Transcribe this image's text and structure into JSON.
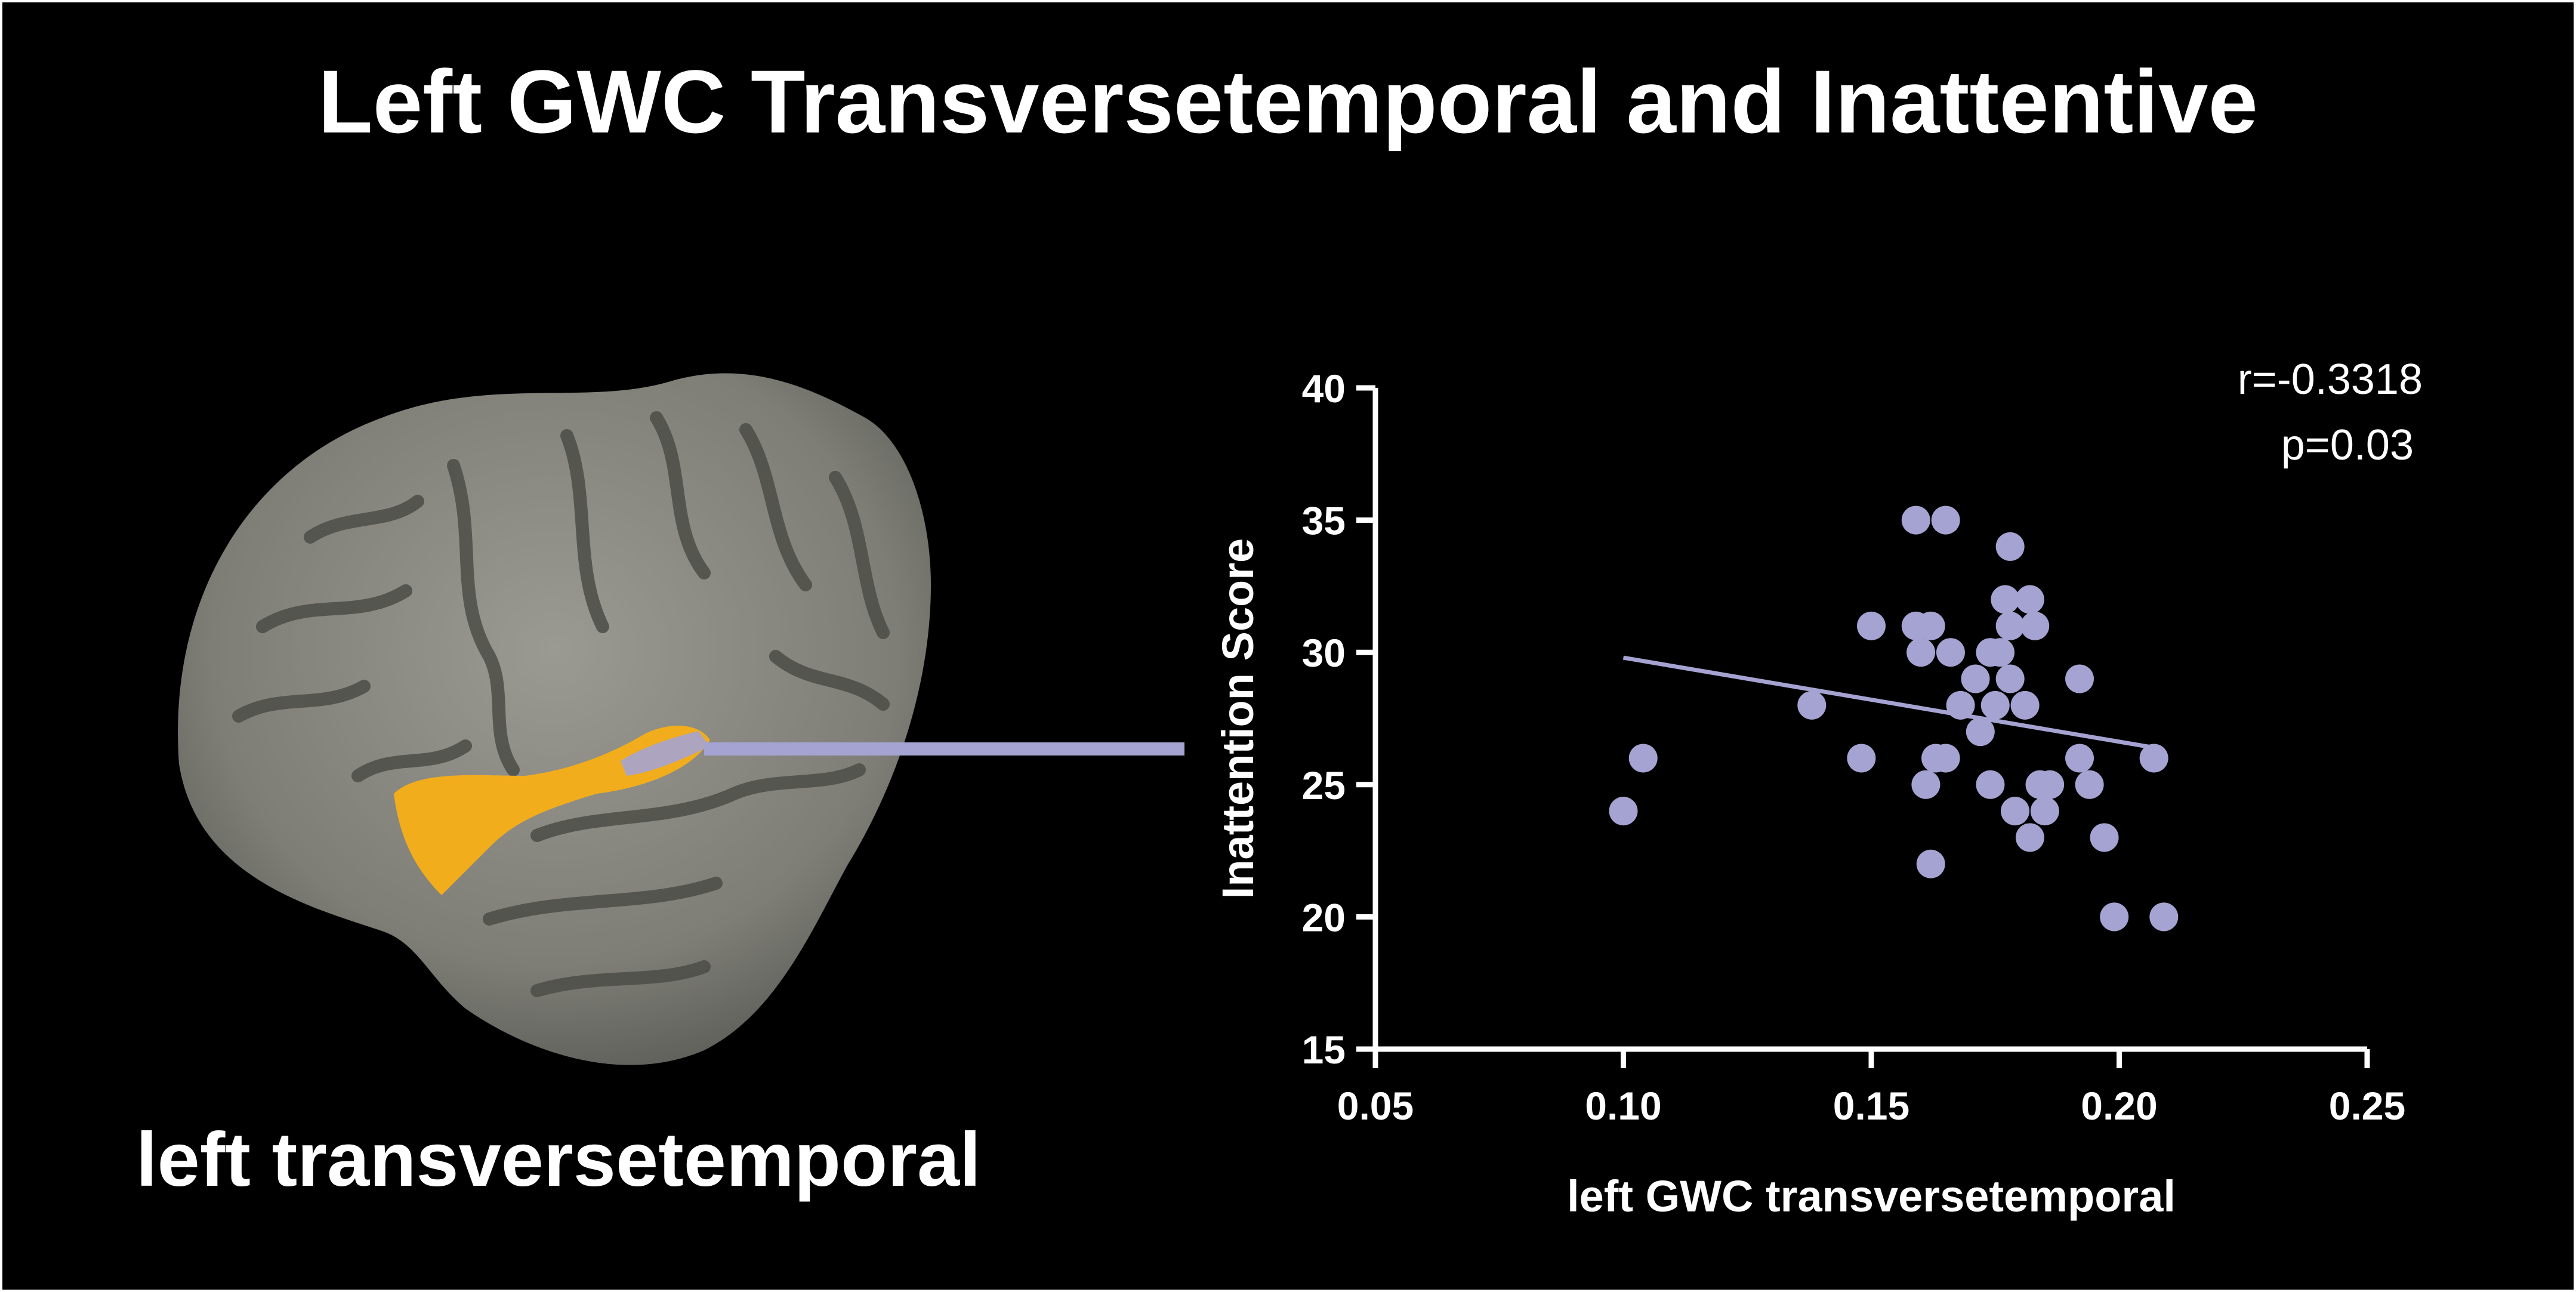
{
  "title": "Left GWC Transversetemporal and Inattentive",
  "region_label": "left transversetemporal",
  "colors": {
    "background": "#000000",
    "text": "#ffffff",
    "point": "#a5a3d2",
    "fit_line": "#a5a3d2",
    "brain_region": "#f2ad1c",
    "brain_cortex": "#8a8a82"
  },
  "chart_data": {
    "type": "scatter",
    "title": "",
    "xlabel": "left GWC transversetemporal",
    "ylabel": "Inattention Score",
    "xlim": [
      0.05,
      0.25
    ],
    "ylim": [
      15,
      40
    ],
    "xticks": [
      "0.05",
      "0.10",
      "0.15",
      "0.20",
      "0.25"
    ],
    "yticks": [
      "15",
      "20",
      "25",
      "30",
      "35",
      "40"
    ],
    "grid": false,
    "annotation": [
      "r=-0.3318",
      "p=0.03"
    ],
    "fit_line": {
      "x": [
        0.1,
        0.207
      ],
      "y": [
        29.8,
        26.4
      ]
    },
    "points": [
      {
        "x": 0.1,
        "y": 24
      },
      {
        "x": 0.104,
        "y": 26
      },
      {
        "x": 0.138,
        "y": 28
      },
      {
        "x": 0.148,
        "y": 26
      },
      {
        "x": 0.15,
        "y": 31
      },
      {
        "x": 0.159,
        "y": 35
      },
      {
        "x": 0.165,
        "y": 35
      },
      {
        "x": 0.159,
        "y": 31
      },
      {
        "x": 0.162,
        "y": 31
      },
      {
        "x": 0.16,
        "y": 30
      },
      {
        "x": 0.166,
        "y": 30
      },
      {
        "x": 0.161,
        "y": 25
      },
      {
        "x": 0.163,
        "y": 26
      },
      {
        "x": 0.165,
        "y": 26
      },
      {
        "x": 0.162,
        "y": 22
      },
      {
        "x": 0.168,
        "y": 28
      },
      {
        "x": 0.171,
        "y": 29
      },
      {
        "x": 0.172,
        "y": 27
      },
      {
        "x": 0.174,
        "y": 30
      },
      {
        "x": 0.175,
        "y": 28
      },
      {
        "x": 0.176,
        "y": 30
      },
      {
        "x": 0.174,
        "y": 25
      },
      {
        "x": 0.178,
        "y": 34
      },
      {
        "x": 0.177,
        "y": 32
      },
      {
        "x": 0.178,
        "y": 31
      },
      {
        "x": 0.178,
        "y": 29
      },
      {
        "x": 0.179,
        "y": 24
      },
      {
        "x": 0.182,
        "y": 32
      },
      {
        "x": 0.183,
        "y": 31
      },
      {
        "x": 0.181,
        "y": 28
      },
      {
        "x": 0.182,
        "y": 23
      },
      {
        "x": 0.184,
        "y": 25
      },
      {
        "x": 0.185,
        "y": 24
      },
      {
        "x": 0.186,
        "y": 25
      },
      {
        "x": 0.192,
        "y": 29
      },
      {
        "x": 0.192,
        "y": 26
      },
      {
        "x": 0.194,
        "y": 25
      },
      {
        "x": 0.197,
        "y": 23
      },
      {
        "x": 0.199,
        "y": 20
      },
      {
        "x": 0.207,
        "y": 26
      },
      {
        "x": 0.209,
        "y": 20
      }
    ]
  }
}
